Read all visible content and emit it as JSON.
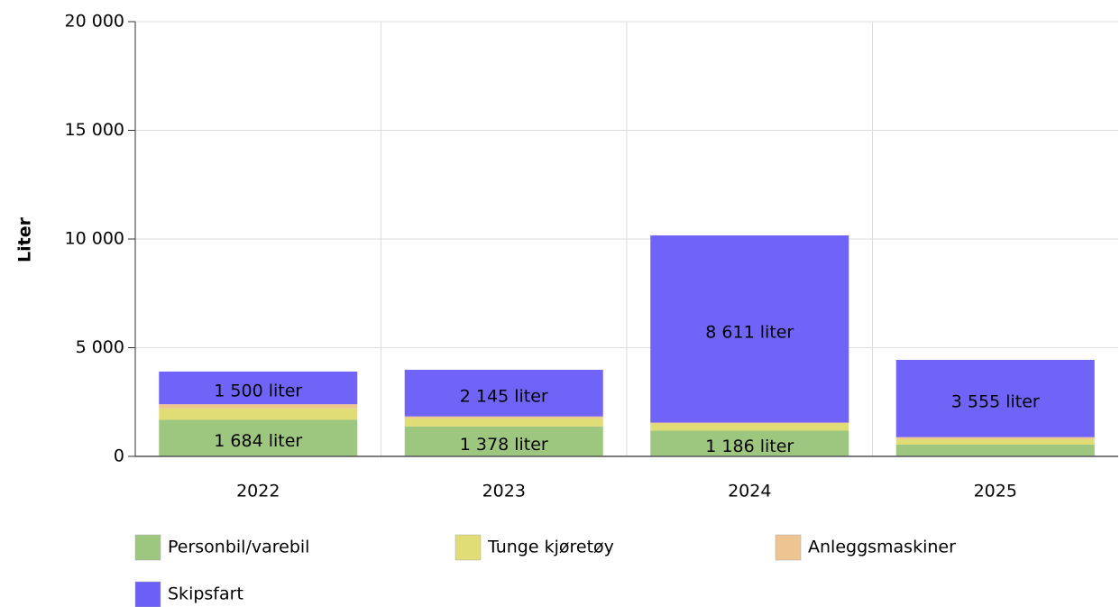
{
  "chart_data": {
    "type": "stacked_bar",
    "y_label": "Liter",
    "categories": [
      "2022",
      "2023",
      "2024",
      "2025"
    ],
    "series": [
      {
        "name": "Personbil/varebil",
        "color": "#9dc67f",
        "values": [
          1684,
          1378,
          1186,
          540
        ],
        "value_labels": [
          "1 684 liter",
          "1 378 liter",
          "1 186 liter",
          null
        ]
      },
      {
        "name": "Tunge kjøretøy",
        "color": "#e0dc76",
        "values": [
          530,
          380,
          330,
          250
        ]
      },
      {
        "name": "Anleggsmaskiner",
        "color": "#eec591",
        "values": [
          186,
          80,
          39,
          95
        ]
      },
      {
        "name": "Skipsfart",
        "color": "#6b5ff8",
        "values": [
          1500,
          2145,
          8611,
          3555
        ],
        "value_labels": [
          "1 500 liter",
          "2 145 liter",
          "8 611 liter",
          "3 555 liter"
        ]
      }
    ],
    "ylim": [
      0,
      20000
    ],
    "yticks": [
      0,
      {
        "value": 5000,
        "label": "5 000"
      },
      {
        "value": 10000,
        "label": "10 000"
      },
      {
        "value": 15000,
        "label": "15 000"
      },
      {
        "value": 20000,
        "label": "20 000"
      }
    ],
    "grid": true,
    "legend": "bottom"
  }
}
